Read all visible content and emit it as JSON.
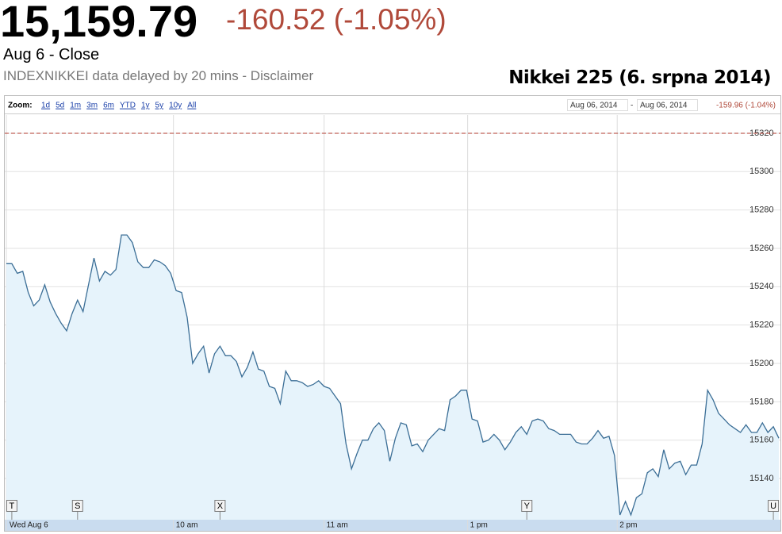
{
  "header": {
    "price": "15,159.79",
    "change": "-160.52 (-1.05%)",
    "status": "Aug 6 - Close",
    "note": "INDEXNIKKEI data delayed by 20 mins - Disclaimer"
  },
  "toolbar": {
    "zoom_label": "Zoom:",
    "zoom_options": [
      "1d",
      "5d",
      "1m",
      "3m",
      "6m",
      "YTD",
      "1y",
      "5y",
      "10y",
      "All"
    ],
    "range_start": "Aug 06, 2014",
    "range_sep": "-",
    "range_end": "Aug 06, 2014",
    "range_change": "-159.96 (-1.04%)"
  },
  "chart_data": {
    "type": "line",
    "title": "Nikkei 225 (6. srpna 2014)",
    "values": [
      15252,
      15252,
      15247,
      15248,
      15237,
      15230,
      15233,
      15241,
      15232,
      15226,
      15221,
      15217,
      15226,
      15233,
      15227,
      15241,
      15255,
      15243,
      15248,
      15246,
      15249,
      15267,
      15267,
      15263,
      15253,
      15250,
      15250,
      15254,
      15253,
      15251,
      15247,
      15238,
      15237,
      15224,
      15200,
      15205,
      15209,
      15195,
      15205,
      15209,
      15204,
      15204,
      15201,
      15193,
      15198,
      15206,
      15197,
      15196,
      15188,
      15187,
      15179,
      15196,
      15191,
      15191,
      15190,
      15188,
      15189,
      15191,
      15188,
      15187,
      15183,
      15179,
      15158,
      15145,
      15153,
      15160,
      15160,
      15166,
      15169,
      15165,
      15149,
      15161,
      15169,
      15168,
      15157,
      15158,
      15154,
      15160,
      15163,
      15166,
      15165,
      15181,
      15183,
      15186,
      15186,
      15171,
      15170,
      15159,
      15160,
      15163,
      15160,
      15155,
      15159,
      15164,
      15167,
      15163,
      15170,
      15171,
      15170,
      15166,
      15165,
      15163,
      15163,
      15163,
      15159,
      15158,
      15158,
      15161,
      15165,
      15161,
      15162,
      15152,
      15121,
      15128,
      15121,
      15130,
      15132,
      15143,
      15145,
      15141,
      15155,
      15145,
      15148,
      15149,
      15142,
      15147,
      15147,
      15158,
      15186,
      15181,
      15174,
      15171,
      15168,
      15166,
      15164,
      15168,
      15164,
      15164,
      15169,
      15164,
      15167,
      15161
    ],
    "color": "#3b6e96",
    "fill_color": "#e6f3fb",
    "xlim": [
      0,
      141
    ],
    "xticks": [
      {
        "value": 0,
        "label": "Wed Aug 6"
      },
      {
        "value": 30.5,
        "label": "10 am"
      },
      {
        "value": 58,
        "label": "11 am"
      },
      {
        "value": 84.2,
        "label": "1 pm"
      },
      {
        "value": 111.5,
        "label": "2 pm"
      }
    ],
    "ylim": [
      15118.5,
      15329.5
    ],
    "yticks": [
      15140,
      15160,
      15180,
      15200,
      15220,
      15240,
      15260,
      15280,
      15300,
      15320
    ],
    "grid": true,
    "reference_line": 15320,
    "flags": [
      {
        "label": "T",
        "x": 1
      },
      {
        "label": "S",
        "x": 13
      },
      {
        "label": "X",
        "x": 39
      },
      {
        "label": "Y",
        "x": 95
      },
      {
        "label": "U",
        "x": 140
      }
    ]
  }
}
